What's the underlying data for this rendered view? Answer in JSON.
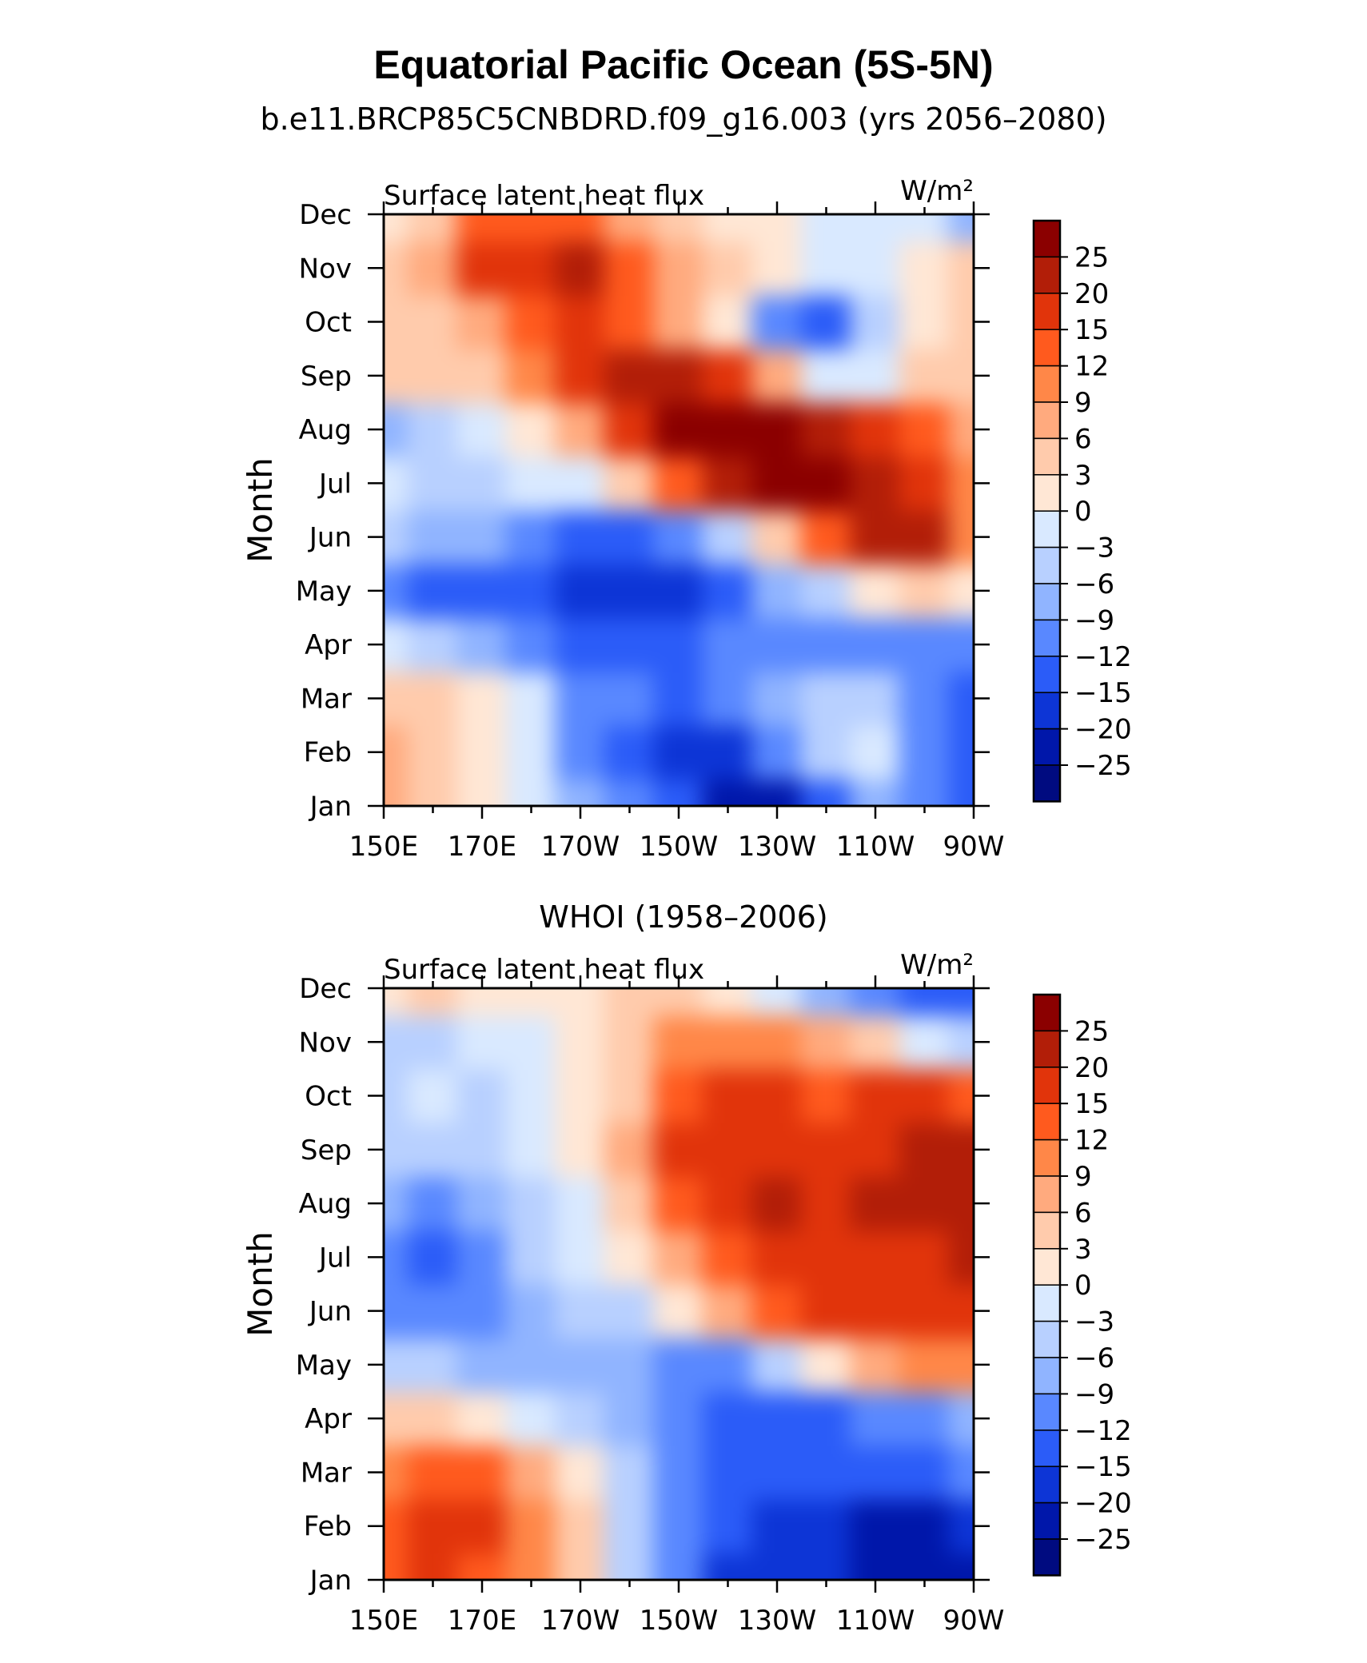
{
  "title": "Equatorial Pacific Ocean (5S-5N)",
  "colorscale": {
    "levels": [
      "25",
      "20",
      "15",
      "12",
      "9",
      "6",
      "3",
      "0",
      "−3",
      "−6",
      "−9",
      "−12",
      "−15",
      "−20",
      "−25"
    ],
    "colors": [
      "#8b0000",
      "#b21e08",
      "#e1340b",
      "#ff5a1e",
      "#ff8748",
      "#ffaa7e",
      "#ffcbac",
      "#ffe7d5",
      "#d9e9ff",
      "#b8d0ff",
      "#90b4ff",
      "#5988ff",
      "#2b5cf8",
      "#0d35d6",
      "#0017aa",
      "#000b80"
    ]
  },
  "chart_data": [
    {
      "type": "heatmap",
      "title": "b.e11.BRCP85C5CNBDRD.f09_g16.003 (yrs 2056–2080)",
      "variable": "Surface latent heat flux",
      "units": "W/m²",
      "ylabel": "Month",
      "x_tick_labels": [
        "150E",
        "170E",
        "170W",
        "150W",
        "130W",
        "110W",
        "90W"
      ],
      "y_tick_labels": [
        "Jan",
        "Feb",
        "Mar",
        "Apr",
        "May",
        "Jun",
        "Jul",
        "Aug",
        "Sep",
        "Oct",
        "Nov",
        "Dec"
      ],
      "x_lon": [
        150,
        160,
        170,
        180,
        190,
        200,
        210,
        220,
        230,
        240,
        250,
        260,
        270
      ],
      "values": [
        [
          6,
          3,
          0,
          -3,
          -9,
          -12,
          -15,
          -22,
          -22,
          -15,
          -9,
          -12,
          -15
        ],
        [
          8,
          5,
          1,
          -3,
          -12,
          -15,
          -20,
          -20,
          -12,
          -6,
          -3,
          -12,
          -15
        ],
        [
          5,
          3,
          0,
          -3,
          -12,
          -12,
          -15,
          -12,
          -9,
          -6,
          -6,
          -12,
          -15
        ],
        [
          -3,
          -6,
          -9,
          -12,
          -15,
          -15,
          -15,
          -12,
          -12,
          -12,
          -12,
          -12,
          -12
        ],
        [
          -12,
          -15,
          -15,
          -15,
          -20,
          -20,
          -20,
          -15,
          -9,
          -6,
          0,
          3,
          0
        ],
        [
          -6,
          -9,
          -9,
          -12,
          -15,
          -15,
          -12,
          -6,
          3,
          12,
          20,
          22,
          9
        ],
        [
          -3,
          -6,
          -6,
          -3,
          -3,
          3,
          12,
          20,
          26,
          28,
          24,
          18,
          9
        ],
        [
          -9,
          -6,
          -3,
          0,
          6,
          15,
          26,
          29,
          27,
          20,
          15,
          12,
          6
        ],
        [
          3,
          3,
          3,
          9,
          15,
          20,
          20,
          15,
          6,
          -3,
          -3,
          3,
          3
        ],
        [
          3,
          3,
          6,
          12,
          15,
          12,
          6,
          0,
          -12,
          -15,
          -6,
          0,
          3
        ],
        [
          3,
          6,
          15,
          18,
          20,
          12,
          6,
          3,
          0,
          -3,
          -3,
          0,
          3
        ],
        [
          0,
          3,
          12,
          12,
          12,
          6,
          3,
          0,
          0,
          -3,
          -3,
          -3,
          -9
        ]
      ]
    },
    {
      "type": "heatmap",
      "title": "WHOI (1958–2006)",
      "variable": "Surface latent heat flux",
      "units": "W/m²",
      "ylabel": "Month",
      "x_tick_labels": [
        "150E",
        "170E",
        "170W",
        "150W",
        "130W",
        "110W",
        "90W"
      ],
      "y_tick_labels": [
        "Jan",
        "Feb",
        "Mar",
        "Apr",
        "May",
        "Jun",
        "Jul",
        "Aug",
        "Sep",
        "Oct",
        "Nov",
        "Dec"
      ],
      "x_lon": [
        150,
        160,
        170,
        180,
        190,
        200,
        210,
        220,
        230,
        240,
        250,
        260,
        270
      ],
      "values": [
        [
          12,
          15,
          12,
          9,
          3,
          -6,
          -12,
          -20,
          -20,
          -20,
          -22,
          -25,
          -25
        ],
        [
          14,
          18,
          15,
          9,
          3,
          -6,
          -12,
          -15,
          -20,
          -20,
          -22,
          -22,
          -20
        ],
        [
          9,
          12,
          12,
          6,
          0,
          -6,
          -12,
          -15,
          -15,
          -15,
          -15,
          -15,
          -12
        ],
        [
          3,
          3,
          0,
          -3,
          -6,
          -9,
          -12,
          -15,
          -15,
          -15,
          -12,
          -12,
          -9
        ],
        [
          -6,
          -6,
          -9,
          -9,
          -9,
          -9,
          -12,
          -12,
          -6,
          0,
          6,
          9,
          9
        ],
        [
          -12,
          -12,
          -12,
          -9,
          -6,
          -6,
          0,
          6,
          12,
          15,
          15,
          15,
          15
        ],
        [
          -12,
          -15,
          -12,
          -6,
          -3,
          0,
          6,
          12,
          15,
          15,
          15,
          18,
          20
        ],
        [
          -9,
          -12,
          -9,
          -6,
          -3,
          3,
          12,
          18,
          20,
          18,
          20,
          20,
          20
        ],
        [
          -6,
          -6,
          -6,
          -3,
          0,
          6,
          15,
          18,
          18,
          15,
          18,
          20,
          22
        ],
        [
          -6,
          -3,
          -6,
          -3,
          0,
          3,
          12,
          15,
          15,
          12,
          15,
          15,
          12
        ],
        [
          -6,
          -6,
          -3,
          -3,
          0,
          3,
          9,
          9,
          9,
          6,
          3,
          -3,
          -6
        ],
        [
          0,
          3,
          0,
          0,
          0,
          3,
          3,
          0,
          -3,
          -9,
          -12,
          -15,
          -15
        ]
      ]
    }
  ]
}
